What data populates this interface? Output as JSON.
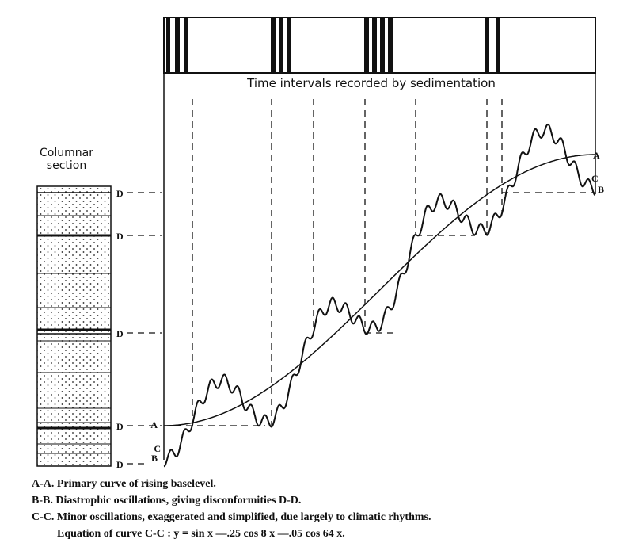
{
  "header_bar": {
    "label": "Time intervals recorded by sedimentation"
  },
  "column": {
    "title": [
      "Columnar",
      "section"
    ],
    "markers": [
      "D",
      "D",
      "D",
      "D",
      "D"
    ]
  },
  "curve_labels": {
    "left": [
      "A",
      "C",
      "B"
    ],
    "right": [
      "A",
      "C",
      "B"
    ]
  },
  "legend": [
    "A-A. Primary curve of rising baselevel.",
    "B-B. Diastrophic oscillations, giving disconformities D-D.",
    "C-C. Minor oscillations, exaggerated and simplified, due largely to climatic rhythms.",
    "Equation of curve C-C : y = sin x —.25 cos 8 x —.05 cos 64 x."
  ]
}
